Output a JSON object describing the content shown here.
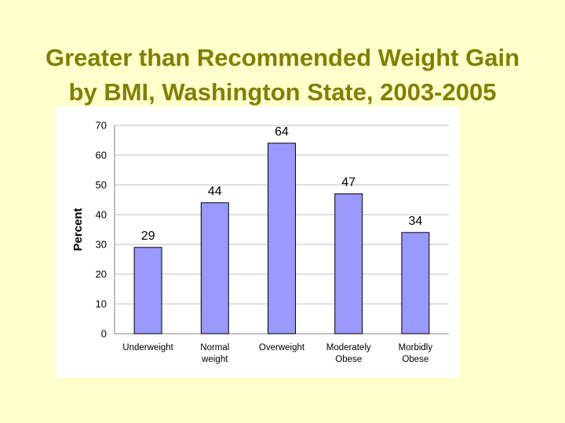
{
  "slide": {
    "title_line1": "Greater than Recommended Weight Gain",
    "title_line2": "by BMI, Washington State, 2003-2005"
  },
  "colors": {
    "background": "#FFFFCC",
    "title": "#808000",
    "bar_fill": "#9999FF",
    "bar_stroke": "#000000",
    "grid": "#C0C0C0"
  },
  "chart_data": {
    "type": "bar",
    "title": "Greater than Recommended Weight Gain by BMI, Washington State, 2003-2005",
    "xlabel": "",
    "ylabel": "Percent",
    "ylim": [
      0,
      70
    ],
    "yticks": [
      0,
      10,
      20,
      30,
      40,
      50,
      60,
      70
    ],
    "categories": [
      [
        "Underweight"
      ],
      [
        "Normal",
        "weight"
      ],
      [
        "Overweight"
      ],
      [
        "Moderately",
        "Obese"
      ],
      [
        "Morbidly",
        "Obese"
      ]
    ],
    "values": [
      29,
      44,
      64,
      47,
      34
    ],
    "grid": true,
    "legend": "none"
  }
}
